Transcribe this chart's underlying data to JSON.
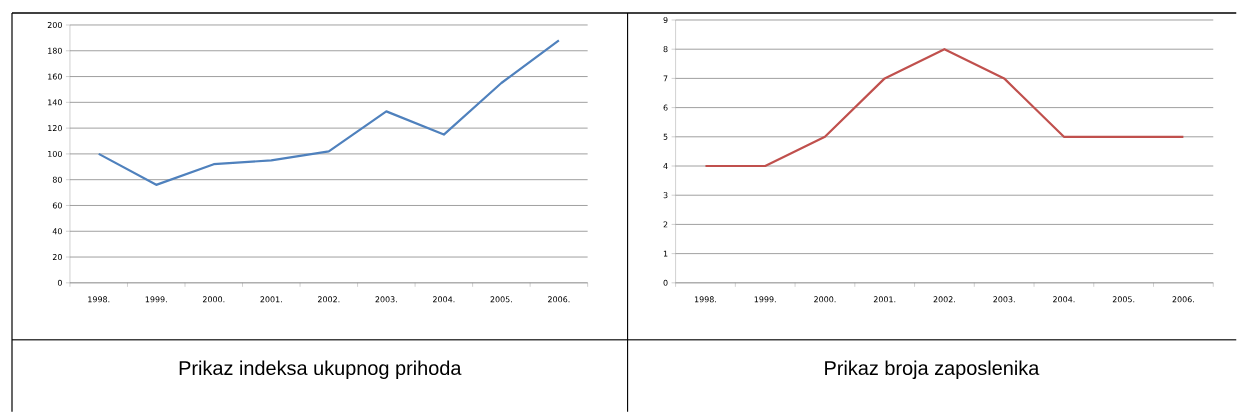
{
  "chart_data": [
    {
      "type": "line",
      "title": "Prikaz indeksa ukupnog prihoda",
      "categories": [
        "1998.",
        "1999.",
        "2000.",
        "2001.",
        "2002.",
        "2003.",
        "2004.",
        "2005.",
        "2006."
      ],
      "series": [
        {
          "color": "#4f81bd",
          "values": [
            100,
            76,
            92,
            95,
            102,
            133,
            115,
            155,
            188
          ]
        }
      ],
      "ylim": [
        0,
        200
      ],
      "yticks": [
        0,
        20,
        40,
        60,
        80,
        100,
        120,
        140,
        160,
        180,
        200
      ],
      "grid": "y",
      "marker": "none",
      "line_style": "solid"
    },
    {
      "type": "line",
      "title": "Prikaz broja zaposlenika",
      "categories": [
        "1998.",
        "1999.",
        "2000.",
        "2001.",
        "2002.",
        "2003.",
        "2004.",
        "2005.",
        "2006."
      ],
      "series": [
        {
          "color": "#c0504d",
          "values": [
            4,
            4,
            5,
            7,
            8,
            7,
            5,
            5,
            5
          ]
        }
      ],
      "ylim": [
        0,
        9
      ],
      "yticks": [
        0,
        1,
        2,
        3,
        4,
        5,
        6,
        7,
        8,
        9
      ],
      "grid": "y",
      "marker": "none",
      "line_style": "solid"
    }
  ]
}
